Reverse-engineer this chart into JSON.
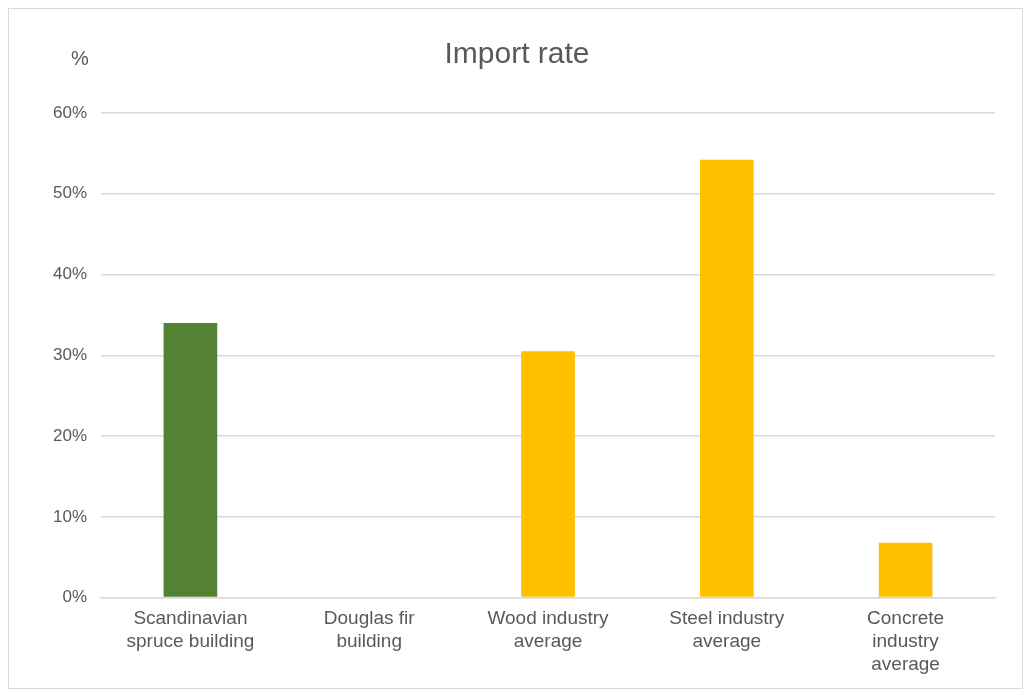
{
  "chart_data": {
    "type": "bar",
    "title": "Import rate",
    "ylabel": "%",
    "categories": [
      "Scandinavian spruce building",
      "Douglas fir building",
      "Wood industry average",
      "Steel industry average",
      "Concrete industry average"
    ],
    "values": [
      34,
      0,
      30.5,
      54.2,
      6.8
    ],
    "colors": [
      "#548235",
      "#ffc000",
      "#ffc000",
      "#ffc000",
      "#ffc000"
    ],
    "ylim": [
      0,
      60
    ],
    "yticks": [
      {
        "value": 0,
        "label": "0%"
      },
      {
        "value": 10,
        "label": "10%"
      },
      {
        "value": 20,
        "label": "20%"
      },
      {
        "value": 30,
        "label": "30%"
      },
      {
        "value": 40,
        "label": "40%"
      },
      {
        "value": 50,
        "label": "50%"
      },
      {
        "value": 60,
        "label": "60%"
      }
    ],
    "grid": "y",
    "legend": false
  }
}
